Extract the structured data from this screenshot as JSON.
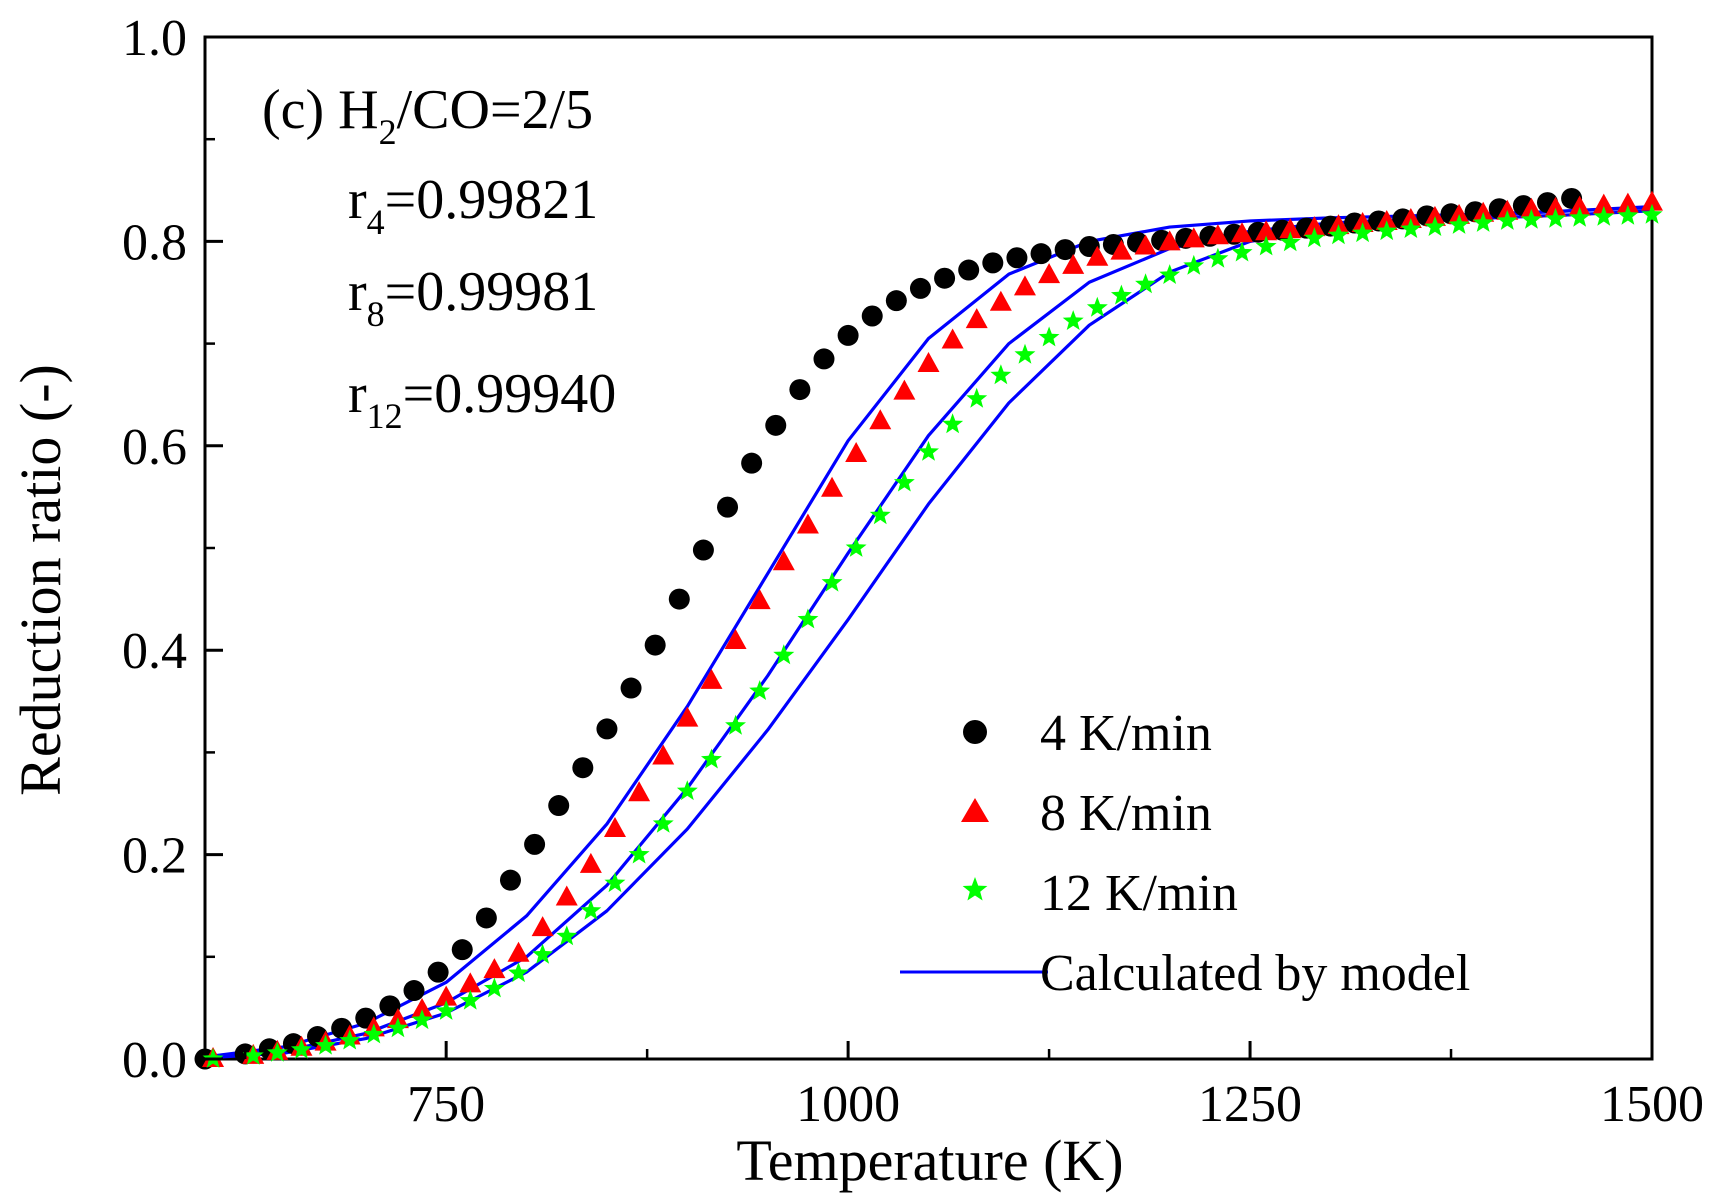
{
  "chart_data": {
    "type": "scatter",
    "title": "",
    "xlabel": "Temperature (K)",
    "ylabel": "Reduction ratio (-)",
    "xlim": [
      600,
      1500
    ],
    "ylim": [
      0.0,
      1.0
    ],
    "x_ticks": [
      750,
      1000,
      1250,
      1500
    ],
    "x_tick_labels": [
      "750",
      "1000",
      "1250",
      "1500"
    ],
    "y_ticks": [
      0.0,
      0.2,
      0.4,
      0.6,
      0.8,
      1.0
    ],
    "y_tick_labels": [
      "0.0",
      "0.2",
      "0.4",
      "0.6",
      "0.8",
      "1.0"
    ],
    "grid": false,
    "legend_position": "bottom-right",
    "annotation": {
      "panel": "(c) H",
      "panel_sub": "2",
      "panel_rest": "/CO=2/5",
      "r_lines": [
        {
          "base": "r",
          "sub": "4",
          "value": "=0.99821"
        },
        {
          "base": "r",
          "sub": "8",
          "value": "=0.99981"
        },
        {
          "base": "r",
          "sub": "12",
          "value": "=0.99940"
        }
      ]
    },
    "colors": {
      "series_4": "#000000",
      "series_8": "#ff0000",
      "series_12": "#00ff00",
      "model": "#0000ff"
    },
    "series": [
      {
        "name": "4 K/min",
        "marker": "circle",
        "x": [
          600,
          625,
          640,
          655,
          670,
          685,
          700,
          715,
          730,
          745,
          760,
          775,
          790,
          805,
          820,
          835,
          850,
          865,
          880,
          895,
          910,
          925,
          940,
          955,
          970,
          985,
          1000,
          1015,
          1030,
          1045,
          1060,
          1075,
          1090,
          1105,
          1120,
          1135,
          1150,
          1165,
          1180,
          1195,
          1210,
          1225,
          1240,
          1255,
          1270,
          1285,
          1300,
          1315,
          1330,
          1345,
          1360,
          1375,
          1390,
          1405,
          1420,
          1435,
          1450
        ],
        "values": [
          0.0,
          0.005,
          0.01,
          0.015,
          0.022,
          0.03,
          0.04,
          0.052,
          0.067,
          0.085,
          0.107,
          0.138,
          0.175,
          0.21,
          0.248,
          0.285,
          0.323,
          0.363,
          0.405,
          0.45,
          0.498,
          0.54,
          0.583,
          0.62,
          0.655,
          0.685,
          0.708,
          0.727,
          0.742,
          0.754,
          0.764,
          0.772,
          0.779,
          0.784,
          0.788,
          0.792,
          0.795,
          0.797,
          0.799,
          0.801,
          0.803,
          0.805,
          0.807,
          0.809,
          0.811,
          0.813,
          0.815,
          0.818,
          0.82,
          0.822,
          0.825,
          0.827,
          0.829,
          0.832,
          0.835,
          0.838,
          0.842
        ]
      },
      {
        "name": "8 K/min",
        "marker": "triangle",
        "x": [
          605,
          630,
          645,
          660,
          675,
          690,
          705,
          720,
          735,
          750,
          765,
          780,
          795,
          810,
          825,
          840,
          855,
          870,
          885,
          900,
          915,
          930,
          945,
          960,
          975,
          990,
          1005,
          1020,
          1035,
          1050,
          1065,
          1080,
          1095,
          1110,
          1125,
          1140,
          1155,
          1170,
          1185,
          1200,
          1215,
          1230,
          1245,
          1260,
          1275,
          1290,
          1305,
          1320,
          1335,
          1350,
          1365,
          1380,
          1395,
          1410,
          1425,
          1440,
          1455,
          1470,
          1485,
          1500
        ],
        "values": [
          0.0,
          0.003,
          0.007,
          0.011,
          0.016,
          0.022,
          0.03,
          0.038,
          0.048,
          0.06,
          0.073,
          0.087,
          0.103,
          0.128,
          0.158,
          0.19,
          0.225,
          0.26,
          0.296,
          0.333,
          0.37,
          0.409,
          0.448,
          0.486,
          0.522,
          0.558,
          0.592,
          0.624,
          0.653,
          0.68,
          0.703,
          0.723,
          0.74,
          0.755,
          0.767,
          0.776,
          0.784,
          0.79,
          0.795,
          0.799,
          0.802,
          0.805,
          0.807,
          0.809,
          0.811,
          0.813,
          0.815,
          0.817,
          0.819,
          0.821,
          0.823,
          0.825,
          0.827,
          0.829,
          0.831,
          0.832,
          0.833,
          0.835,
          0.836,
          0.838
        ]
      },
      {
        "name": "12 K/min",
        "marker": "star",
        "x": [
          605,
          630,
          645,
          660,
          675,
          690,
          705,
          720,
          735,
          750,
          765,
          780,
          795,
          810,
          825,
          840,
          855,
          870,
          885,
          900,
          915,
          930,
          945,
          960,
          975,
          990,
          1005,
          1020,
          1035,
          1050,
          1065,
          1080,
          1095,
          1110,
          1125,
          1140,
          1155,
          1170,
          1185,
          1200,
          1215,
          1230,
          1245,
          1260,
          1275,
          1290,
          1305,
          1320,
          1335,
          1350,
          1365,
          1380,
          1395,
          1410,
          1425,
          1440,
          1455,
          1470,
          1485,
          1500
        ],
        "values": [
          0.0,
          0.003,
          0.006,
          0.009,
          0.013,
          0.018,
          0.024,
          0.03,
          0.038,
          0.047,
          0.057,
          0.069,
          0.084,
          0.102,
          0.12,
          0.145,
          0.172,
          0.2,
          0.23,
          0.262,
          0.293,
          0.326,
          0.36,
          0.395,
          0.43,
          0.466,
          0.5,
          0.532,
          0.564,
          0.594,
          0.621,
          0.646,
          0.669,
          0.689,
          0.706,
          0.722,
          0.735,
          0.747,
          0.758,
          0.767,
          0.776,
          0.783,
          0.789,
          0.795,
          0.799,
          0.803,
          0.806,
          0.808,
          0.81,
          0.812,
          0.814,
          0.816,
          0.818,
          0.82,
          0.821,
          0.822,
          0.823,
          0.824,
          0.825,
          0.826
        ]
      },
      {
        "name": "Calculated by model",
        "marker": "line",
        "curves": [
          {
            "label": "4 K/min",
            "x": [
              600,
              650,
              700,
              750,
              800,
              850,
              900,
              950,
              1000,
              1050,
              1100,
              1150,
              1200,
              1250,
              1300,
              1350,
              1400,
              1450,
              1500
            ],
            "values": [
              0.002,
              0.012,
              0.035,
              0.075,
              0.14,
              0.23,
              0.345,
              0.475,
              0.605,
              0.705,
              0.768,
              0.8,
              0.814,
              0.82,
              0.823,
              0.825,
              0.827,
              0.83,
              0.833
            ]
          },
          {
            "label": "8 K/min",
            "x": [
              600,
              650,
              700,
              750,
              800,
              850,
              900,
              950,
              1000,
              1050,
              1100,
              1150,
              1200,
              1250,
              1300,
              1350,
              1400,
              1450,
              1500
            ],
            "values": [
              0.001,
              0.008,
              0.025,
              0.055,
              0.1,
              0.17,
              0.265,
              0.375,
              0.495,
              0.61,
              0.7,
              0.76,
              0.793,
              0.81,
              0.818,
              0.822,
              0.826,
              0.83,
              0.834
            ]
          },
          {
            "label": "12 K/min",
            "x": [
              600,
              650,
              700,
              750,
              800,
              850,
              900,
              950,
              1000,
              1050,
              1100,
              1150,
              1200,
              1250,
              1300,
              1350,
              1400,
              1450,
              1500
            ],
            "values": [
              0.001,
              0.006,
              0.02,
              0.045,
              0.085,
              0.145,
              0.225,
              0.322,
              0.43,
              0.543,
              0.642,
              0.718,
              0.77,
              0.8,
              0.813,
              0.819,
              0.823,
              0.826,
              0.83
            ]
          }
        ]
      }
    ]
  }
}
